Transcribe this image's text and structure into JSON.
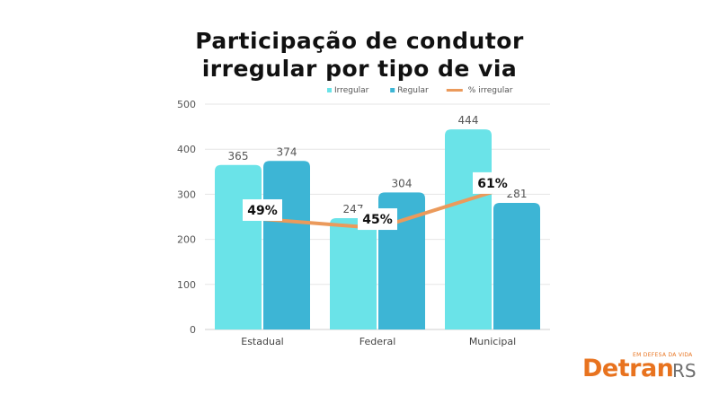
{
  "title_line1": "Participação de condutor",
  "title_line2": "irregular por tipo de via",
  "logo": {
    "tagline": "EM DEFESA DA VIDA",
    "main": "Detran",
    "suffix": "RS"
  },
  "colors": {
    "irregular": "#6ae3e8",
    "regular": "#3db5d5",
    "pct_line": "#eb9a5b",
    "logo_orange": "#e8731f"
  },
  "chart_data": {
    "type": "bar",
    "categories": [
      "Estadual",
      "Federal",
      "Municipal"
    ],
    "series": [
      {
        "name": "Irregular",
        "values": [
          365,
          247,
          444
        ],
        "color": "#6ae3e8"
      },
      {
        "name": "Regular",
        "values": [
          374,
          304,
          281
        ],
        "color": "#3db5d5"
      }
    ],
    "line_series": {
      "name": "% irregular",
      "values": [
        49,
        45,
        61
      ],
      "labels": [
        "49%",
        "45%",
        "61%"
      ],
      "color": "#eb9a5b"
    },
    "yticks": [
      0,
      100,
      200,
      300,
      400,
      500
    ],
    "ylim": [
      0,
      500
    ],
    "grid": true,
    "legend_position": "top-right"
  }
}
